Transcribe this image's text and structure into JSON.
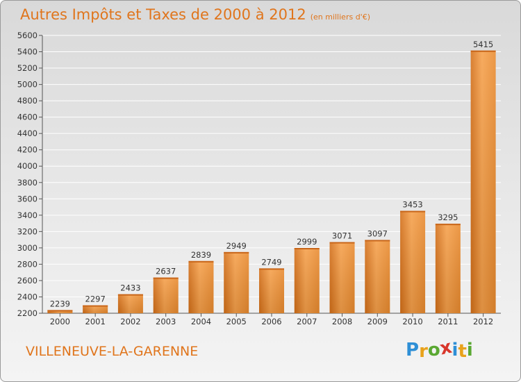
{
  "header": {
    "title": "Autres Impôts et Taxes de 2000 à 2012",
    "subtitle": "(en milliers d'€)"
  },
  "footer": {
    "commune": "VILLENEUVE-LA-GARENNE",
    "logo_text": "Proxiti",
    "logo_letters": [
      {
        "char": "P",
        "color": "#2e8fd6"
      },
      {
        "char": "r",
        "color": "#e8a21b"
      },
      {
        "char": "o",
        "color": "#5aa832"
      },
      {
        "char": "x",
        "color": "#d8362b"
      },
      {
        "char": "i",
        "color": "#2e8fd6"
      },
      {
        "char": "t",
        "color": "#e8a21b"
      },
      {
        "char": "i",
        "color": "#5aa832"
      }
    ]
  },
  "colors": {
    "accent": "#e0751c",
    "bar_light": "#f7a54f",
    "bar_dark": "#d8731a",
    "grid": "#ffffff"
  },
  "chart_data": {
    "type": "bar",
    "title": "Autres Impôts et Taxes de 2000 à 2012",
    "subtitle": "(en milliers d'€)",
    "categories": [
      "2000",
      "2001",
      "2002",
      "2003",
      "2004",
      "2005",
      "2006",
      "2007",
      "2008",
      "2009",
      "2010",
      "2011",
      "2012"
    ],
    "values": [
      2239,
      2297,
      2433,
      2637,
      2839,
      2949,
      2749,
      2999,
      3071,
      3097,
      3453,
      3295,
      5415
    ],
    "ylim": [
      2200,
      5600
    ],
    "yticks": [
      2200,
      2400,
      2600,
      2800,
      3000,
      3200,
      3400,
      3600,
      3800,
      4000,
      4200,
      4400,
      4600,
      4800,
      5000,
      5200,
      5400,
      5600
    ],
    "grid": true,
    "data_labels": true
  }
}
